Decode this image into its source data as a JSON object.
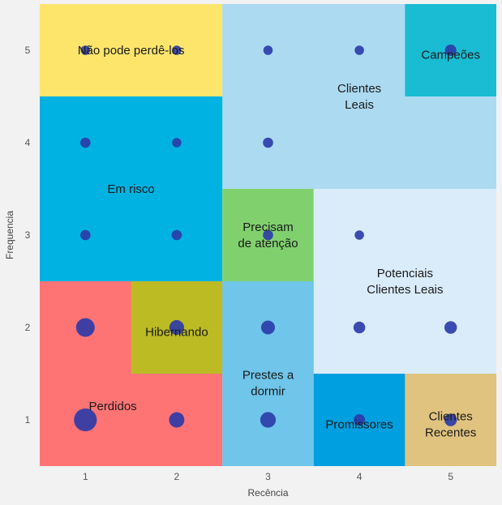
{
  "chart_data": {
    "type": "scatter",
    "xlabel": "Recência",
    "ylabel": "Frequencia",
    "xlim": [
      0.5,
      5.5
    ],
    "ylim": [
      0.5,
      5.5
    ],
    "xticks": [
      "1",
      "2",
      "3",
      "4",
      "5"
    ],
    "yticks": [
      "1",
      "2",
      "3",
      "4",
      "5"
    ],
    "point_color": "#2a3aa8",
    "segments": [
      {
        "name": "Não pode perdê-los",
        "lines": [
          "Não pode perdê-los"
        ],
        "x": [
          0.5,
          2.5
        ],
        "y": [
          4.5,
          5.5
        ],
        "color": "#fde56c"
      },
      {
        "name": "Clientes Leais",
        "lines": [
          "Clientes",
          "Leais"
        ],
        "x": [
          2.5,
          5.5
        ],
        "y": [
          3.5,
          5.5
        ],
        "color": "#acdaf1"
      },
      {
        "name": "Campeões",
        "lines": [
          "Campeões"
        ],
        "x": [
          4.5,
          5.5
        ],
        "y": [
          4.5,
          5.5
        ],
        "color": "#19bcd2"
      },
      {
        "name": "Em risco",
        "lines": [
          "Em risco"
        ],
        "x": [
          0.5,
          2.5
        ],
        "y": [
          2.5,
          4.5
        ],
        "color": "#00b2e2"
      },
      {
        "name": "Precisam de atenção",
        "lines": [
          "Precisam",
          "de atenção"
        ],
        "x": [
          2.5,
          3.5
        ],
        "y": [
          2.5,
          3.5
        ],
        "color": "#80d16e"
      },
      {
        "name": "Potenciais Clientes Leais",
        "lines": [
          "Potenciais",
          "Clientes Leais"
        ],
        "x": [
          3.5,
          5.5
        ],
        "y": [
          1.5,
          3.5
        ],
        "color": "#daecfa"
      },
      {
        "name": "Perdidos",
        "lines": [
          "Perdidos"
        ],
        "x": [
          0.5,
          2.5
        ],
        "y": [
          0.5,
          2.5
        ],
        "color": "#fe7475"
      },
      {
        "name": "Hibernando",
        "lines": [
          "Hibernando"
        ],
        "x": [
          1.5,
          2.5
        ],
        "y": [
          1.5,
          2.5
        ],
        "color": "#bcbb24"
      },
      {
        "name": "Prestes a dormir",
        "lines": [
          "Prestes a",
          "dormir"
        ],
        "x": [
          2.5,
          3.5
        ],
        "y": [
          0.5,
          2.5
        ],
        "color": "#6fc5ea"
      },
      {
        "name": "Promissores",
        "lines": [
          "Promissores"
        ],
        "x": [
          3.5,
          4.5
        ],
        "y": [
          0.5,
          1.5
        ],
        "color": "#009fdf"
      },
      {
        "name": "Clientes Recentes",
        "lines": [
          "Clientes",
          "Recentes"
        ],
        "x": [
          4.5,
          5.5
        ],
        "y": [
          0.5,
          1.5
        ],
        "color": "#e0c37f"
      }
    ],
    "label_positions": [
      {
        "x": 1.5,
        "y": 5.0
      },
      {
        "x": 4.0,
        "y": 4.5
      },
      {
        "x": 5.0,
        "y": 4.95
      },
      {
        "x": 1.5,
        "y": 3.5
      },
      {
        "x": 3.0,
        "y": 3.0
      },
      {
        "x": 4.5,
        "y": 2.5
      },
      {
        "x": 1.3,
        "y": 1.15
      },
      {
        "x": 2.0,
        "y": 1.95
      },
      {
        "x": 3.0,
        "y": 1.4
      },
      {
        "x": 4.0,
        "y": 0.95
      },
      {
        "x": 5.0,
        "y": 0.95
      }
    ],
    "points": [
      {
        "x": 1,
        "y": 5,
        "size": 1
      },
      {
        "x": 2,
        "y": 5,
        "size": 1
      },
      {
        "x": 3,
        "y": 5,
        "size": 1
      },
      {
        "x": 4,
        "y": 5,
        "size": 1
      },
      {
        "x": 5,
        "y": 5,
        "size": 1.5
      },
      {
        "x": 1,
        "y": 4,
        "size": 1.2
      },
      {
        "x": 2,
        "y": 4,
        "size": 1
      },
      {
        "x": 3,
        "y": 4,
        "size": 1.2
      },
      {
        "x": 1,
        "y": 3,
        "size": 1.2
      },
      {
        "x": 2,
        "y": 3,
        "size": 1.2
      },
      {
        "x": 3,
        "y": 3,
        "size": 1.2
      },
      {
        "x": 4,
        "y": 3,
        "size": 1
      },
      {
        "x": 1,
        "y": 2,
        "size": 4
      },
      {
        "x": 2,
        "y": 2,
        "size": 2.5
      },
      {
        "x": 3,
        "y": 2,
        "size": 2.2
      },
      {
        "x": 4,
        "y": 2,
        "size": 1.6
      },
      {
        "x": 5,
        "y": 2,
        "size": 1.8
      },
      {
        "x": 1,
        "y": 1,
        "size": 6
      },
      {
        "x": 2,
        "y": 1,
        "size": 2.7
      },
      {
        "x": 3,
        "y": 1,
        "size": 2.8
      },
      {
        "x": 4,
        "y": 1,
        "size": 1.5
      },
      {
        "x": 5,
        "y": 1,
        "size": 1.8
      }
    ]
  }
}
